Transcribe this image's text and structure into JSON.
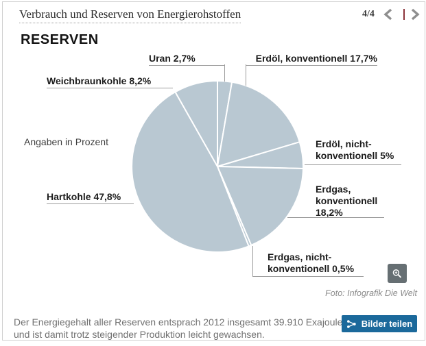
{
  "header": {
    "title": "Verbrauch und Reserven von Energierohstoffen",
    "page_indicator": "4/4"
  },
  "chart": {
    "title": "RESERVEN",
    "note": "Angaben in Prozent"
  },
  "callouts": {
    "uran": "Uran 2,7%",
    "erdoel_konventionell": "Erdöl, konventionell 17,7%",
    "weichbraunkohle": "Weichbraunkohle 8,2%",
    "erdoel_nicht_konventionell": "Erdöl, nicht-\nkonventionell 5%",
    "erdgas_konventionell": "Erdgas,\nkonventionell\n18,2%",
    "hartkohle": "Hartkohle 47,8%",
    "erdgas_nicht_konventionell": "Erdgas, nicht-\nkonventionell 0,5%"
  },
  "chart_data": {
    "type": "pie",
    "title": "RESERVEN",
    "unit_note": "Angaben in Prozent",
    "categories": [
      "Uran",
      "Erdöl, konventionell",
      "Erdöl, nicht-konventionell",
      "Erdgas, konventionell",
      "Erdgas, nicht-konventionell",
      "Hartkohle",
      "Weichbraunkohle"
    ],
    "values": [
      2.7,
      17.7,
      5.0,
      18.2,
      0.5,
      47.8,
      8.2
    ],
    "start_angle_deg": 0,
    "direction": "clockwise",
    "slice_color": "#b9c8d2",
    "divider_color": "#ffffff",
    "legend_position": "outside-callouts"
  },
  "footer": {
    "photo_credit": "Foto: Infografik Die Welt",
    "caption": "Der Energiegehalt aller Reserven entsprach 2012 insgesamt 39.910 Exajoule\nund ist damit trotz steigender Produktion leicht gewachsen.",
    "share_label": "Bilder teilen"
  },
  "colors": {
    "share_button": "#1b699b",
    "zoom_button": "#666f73",
    "leader_line": "#9b9b9b",
    "pager_divider": "#8b3138",
    "chevron": "#8e8e8e"
  }
}
